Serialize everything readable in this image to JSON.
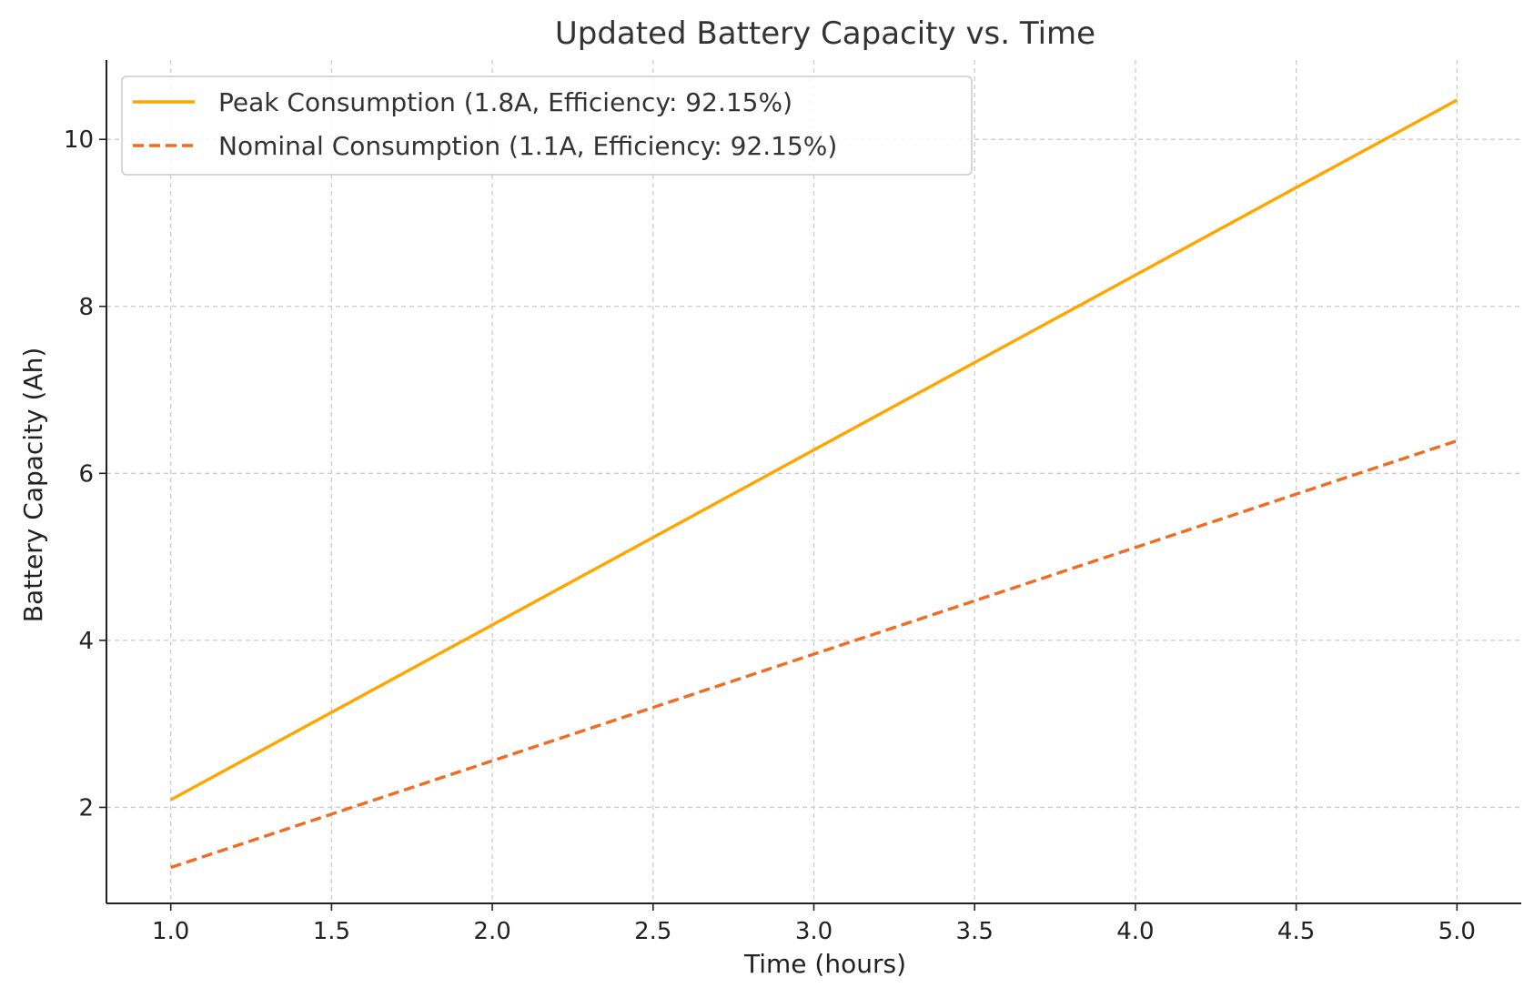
{
  "chart_data": {
    "type": "line",
    "title": "Updated Battery Capacity vs. Time",
    "xlabel": "Time (hours)",
    "ylabel": "Battery Capacity (Ah)",
    "x": [
      1.0,
      5.0
    ],
    "xlim": [
      0.8,
      5.2
    ],
    "ylim": [
      0.85,
      10.95
    ],
    "xticks": [
      1.0,
      1.5,
      2.0,
      2.5,
      3.0,
      3.5,
      4.0,
      4.5,
      5.0
    ],
    "xtick_labels": [
      "1.0",
      "1.5",
      "2.0",
      "2.5",
      "3.0",
      "3.5",
      "4.0",
      "4.5",
      "5.0"
    ],
    "yticks": [
      2,
      4,
      6,
      8,
      10
    ],
    "ytick_labels": [
      "2",
      "4",
      "6",
      "8",
      "10"
    ],
    "grid": true,
    "legend_position": "top-left",
    "series": [
      {
        "name": "Peak Consumption (1.8A, Efficiency: 92.15%)",
        "values": [
          2.09,
          10.47
        ],
        "color": "#FFA500",
        "style": "solid"
      },
      {
        "name": "Nominal Consumption (1.1A, Efficiency: 92.15%)",
        "values": [
          1.28,
          6.39
        ],
        "color": "#F26B22",
        "style": "dashed"
      }
    ]
  }
}
